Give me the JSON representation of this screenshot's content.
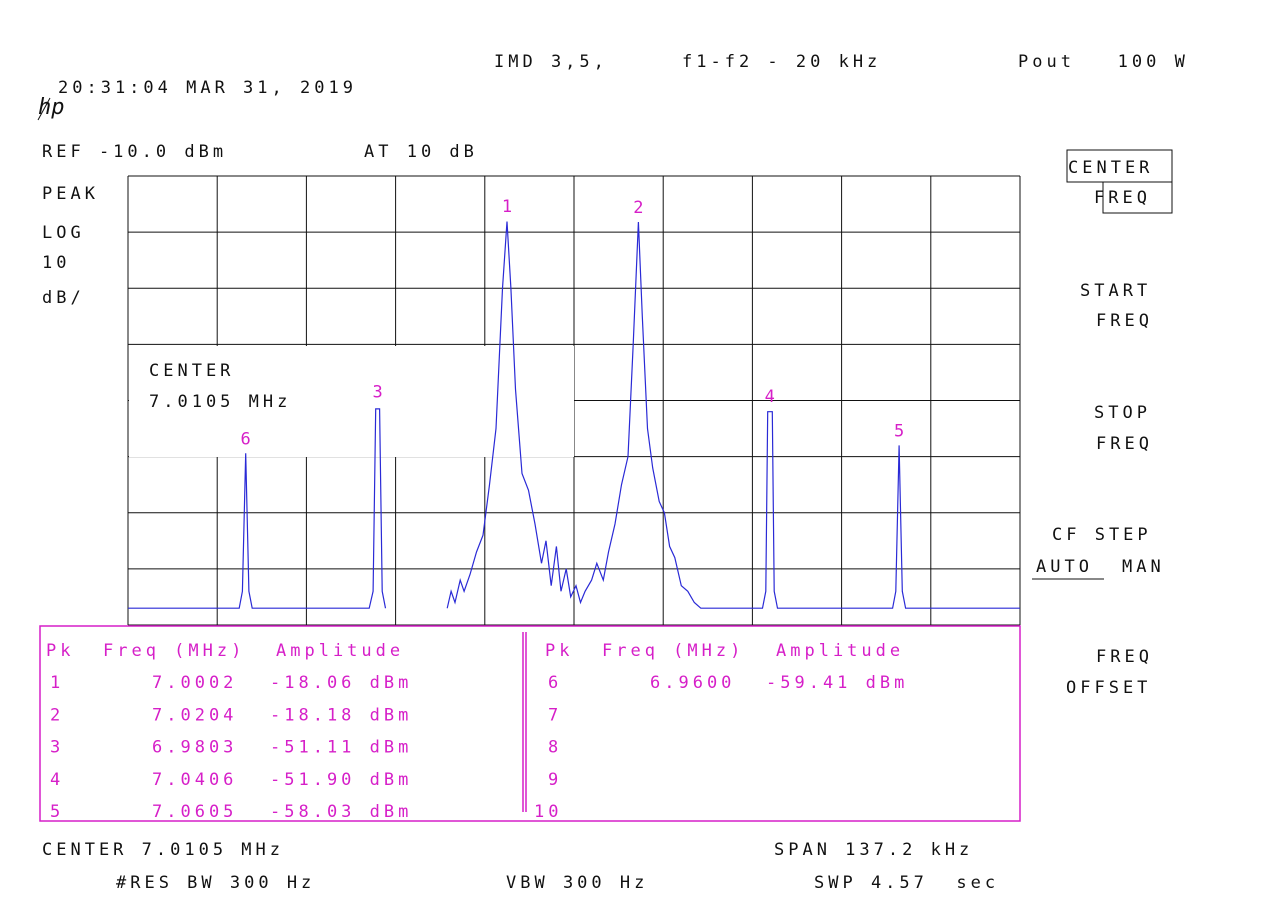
{
  "header": {
    "timestamp": "20:31:04 MAR 31, 2019",
    "logo": "hp",
    "imd": "IMD 3,5,",
    "spacing": "f1-f2 - 20 kHz",
    "pout": "Pout   100 W"
  },
  "settings": {
    "ref": "REF -10.0 dBm",
    "atten": "AT 10 dB",
    "detector": "PEAK",
    "scale": "LOG",
    "scale_value": "10",
    "scale_unit": "dB/",
    "center_label": "CENTER",
    "center_value": "7.0105 MHz"
  },
  "chart_data": {
    "type": "line",
    "xlim": [
      6.9419,
      7.0791
    ],
    "ylim": [
      -90,
      -10
    ],
    "grid": true,
    "color": "#2a2ad6",
    "x": [
      6.9419,
      6.959,
      6.9595,
      6.96,
      6.9605,
      6.961,
      6.979,
      6.9796,
      6.98,
      6.9806,
      6.981,
      6.9815,
      null,
      6.991,
      6.9916,
      6.9922,
      6.993,
      6.9936,
      6.9945,
      6.9955,
      6.9965,
      6.9975,
      6.9985,
      6.9995,
      7.0002,
      7.0008,
      7.0015,
      7.0025,
      7.0035,
      7.0045,
      7.0055,
      7.0062,
      7.007,
      7.0078,
      7.0085,
      7.0093,
      7.01,
      7.0108,
      7.0115,
      7.0122,
      7.0132,
      7.014,
      7.015,
      7.0158,
      7.0168,
      7.0178,
      7.0188,
      7.0196,
      7.0204,
      7.021,
      7.0218,
      7.0226,
      7.0236,
      7.0244,
      7.0252,
      7.026,
      7.027,
      7.028,
      7.029,
      7.03,
      7.0395,
      7.04,
      7.0403,
      7.041,
      7.0413,
      7.0418,
      7.0595,
      7.06,
      7.0605,
      7.061,
      7.0615,
      7.0791
    ],
    "values": [
      -87,
      -87,
      -84,
      -59.4,
      -84,
      -87,
      -87,
      -84,
      -51.5,
      -51.5,
      -84,
      -87,
      null,
      -87,
      -84,
      -86,
      -82,
      -84,
      -81,
      -77,
      -74,
      -65,
      -55,
      -30,
      -18.1,
      -30,
      -48,
      -63,
      -66,
      -72,
      -79,
      -75,
      -83,
      -76,
      -84,
      -80,
      -85,
      -83,
      -86,
      -84,
      -82,
      -79,
      -82,
      -77,
      -72,
      -65,
      -60,
      -40,
      -18.2,
      -35,
      -55,
      -62,
      -68,
      -70,
      -76,
      -78,
      -83,
      -84,
      -86,
      -87,
      -87,
      -84,
      -52,
      -52,
      -84,
      -87,
      -87,
      -84,
      -58,
      -84,
      -87,
      -87
    ],
    "markers": [
      {
        "label": "1",
        "x": 7.0002,
        "y": -18.06
      },
      {
        "label": "2",
        "x": 7.0204,
        "y": -18.18
      },
      {
        "label": "3",
        "x": 6.9803,
        "y": -51.11
      },
      {
        "label": "4",
        "x": 7.0406,
        "y": -51.9
      },
      {
        "label": "5",
        "x": 7.0605,
        "y": -58.03
      },
      {
        "label": "6",
        "x": 6.96,
        "y": -59.41
      }
    ]
  },
  "peak_table": {
    "headers": [
      "Pk",
      "Freq (MHz)",
      "Amplitude"
    ],
    "rows": [
      [
        "1",
        "7.0002",
        "-18.06 dBm"
      ],
      [
        "2",
        "7.0204",
        "-18.18 dBm"
      ],
      [
        "3",
        "6.9803",
        "-51.11 dBm"
      ],
      [
        "4",
        "7.0406",
        "-51.90 dBm"
      ],
      [
        "5",
        "7.0605",
        "-58.03 dBm"
      ],
      [
        "6",
        "6.9600",
        "-59.41 dBm"
      ],
      [
        "7"
      ],
      [
        "8"
      ],
      [
        "9"
      ],
      [
        "10"
      ]
    ]
  },
  "softkeys": {
    "center": [
      "CENTER",
      "FREQ"
    ],
    "start": [
      "START",
      "FREQ"
    ],
    "stop": [
      "STOP",
      "FREQ"
    ],
    "cf_step": [
      "CF STEP",
      "AUTO",
      "MAN"
    ],
    "offset": [
      "FREQ",
      "OFFSET"
    ]
  },
  "footer": {
    "center": "CENTER 7.0105 MHz",
    "span": "SPAN 137.2 kHz",
    "rbw": "#RES BW 300 Hz",
    "vbw": "VBW 300 Hz",
    "sweep": "SWP 4.57  sec"
  }
}
